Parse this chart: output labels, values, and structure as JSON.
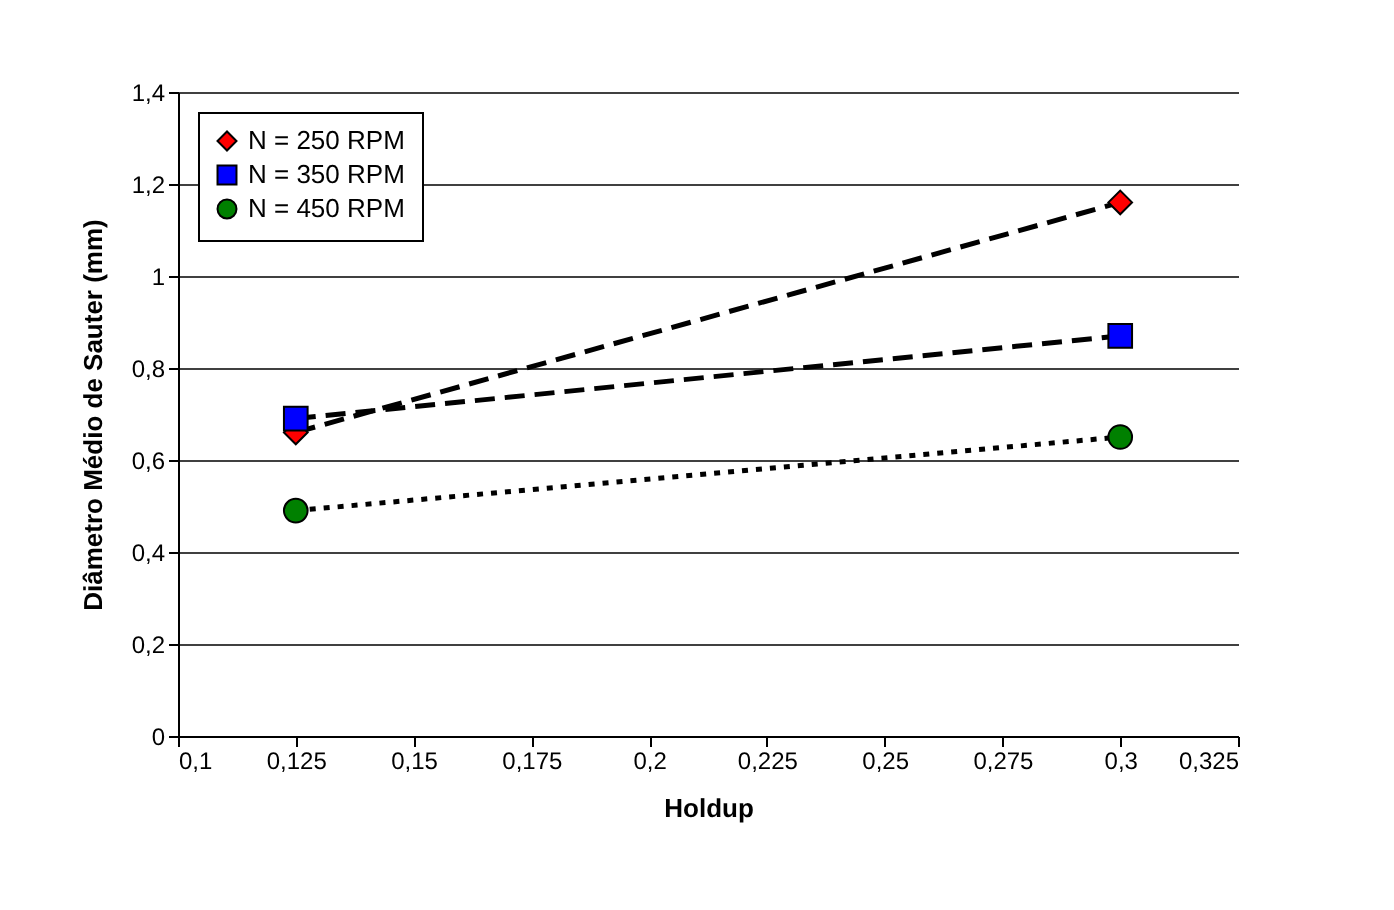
{
  "chart_data": {
    "type": "scatter",
    "xlabel": "Holdup",
    "ylabel": "Diâmetro Médio de Sauter (mm)",
    "x": [
      0.125,
      0.3
    ],
    "xlim": [
      0.1,
      0.325
    ],
    "xticks": [
      {
        "value": 0.1,
        "label": "0,1"
      },
      {
        "value": 0.125,
        "label": "0,125"
      },
      {
        "value": 0.15,
        "label": "0,15"
      },
      {
        "value": 0.175,
        "label": "0,175"
      },
      {
        "value": 0.2,
        "label": "0,2"
      },
      {
        "value": 0.225,
        "label": "0,225"
      },
      {
        "value": 0.25,
        "label": "0,25"
      },
      {
        "value": 0.275,
        "label": "0,275"
      },
      {
        "value": 0.3,
        "label": "0,3"
      },
      {
        "value": 0.325,
        "label": "0,325"
      }
    ],
    "ylim": [
      0,
      1.4
    ],
    "yticks": [
      0,
      {
        "value": 0.2,
        "label": "0,2"
      },
      {
        "value": 0.4,
        "label": "0,4"
      },
      {
        "value": 0.6,
        "label": "0,6"
      },
      {
        "value": 0.8,
        "label": "0,8"
      },
      1,
      {
        "value": 1.2,
        "label": "1,2"
      },
      {
        "value": 1.4,
        "label": "1,4"
      }
    ],
    "grid": "y",
    "legend": "top left",
    "series": [
      {
        "type": "line",
        "color": "#000000",
        "line_style": "dashed",
        "values": [
          0.66,
          1.16
        ]
      },
      {
        "type": "line",
        "color": "#000000",
        "line_style": "dashed",
        "values": [
          0.69,
          0.87
        ]
      },
      {
        "type": "line",
        "color": "#000000",
        "line_style": "dotted",
        "values": [
          0.49,
          0.65
        ]
      },
      {
        "name": "N = 250 RPM",
        "color": "#ff0000",
        "marker": "diamond",
        "values": [
          0.66,
          1.16
        ]
      },
      {
        "name": "N = 350 RPM",
        "color": "#0000ff",
        "marker": "square",
        "values": [
          0.69,
          0.87
        ]
      },
      {
        "name": "N = 450 RPM",
        "color": "#008000",
        "marker": "circle",
        "values": [
          0.49,
          0.65
        ]
      }
    ]
  }
}
